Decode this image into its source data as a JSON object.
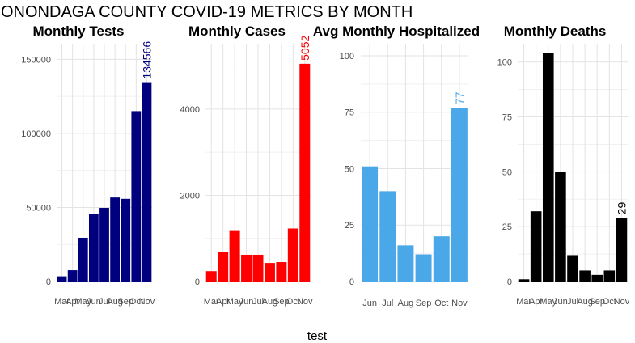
{
  "title": "ONONDAGA COUNTY COVID-19 METRICS BY MONTH",
  "xlabel": "test",
  "chart_data": [
    {
      "type": "bar",
      "title": "Monthly Tests",
      "categories": [
        "Mar",
        "Apr",
        "May",
        "Jun",
        "Jul",
        "Aug",
        "Sep",
        "Oct",
        "Nov"
      ],
      "values": [
        3500,
        7600,
        29500,
        45800,
        49700,
        56700,
        55800,
        115000,
        134566
      ],
      "color": "#00007f",
      "label_color": "#00007f",
      "yticks": [
        0,
        50000,
        100000,
        150000
      ],
      "ylim": [
        0,
        160000
      ],
      "annotation": {
        "category": "Nov",
        "text": "134566"
      }
    },
    {
      "type": "bar",
      "title": "Monthly Cases",
      "categories": [
        "Mar",
        "Apr",
        "May",
        "Jun",
        "Jul",
        "Aug",
        "Sep",
        "Oct",
        "Nov"
      ],
      "values": [
        240,
        680,
        1190,
        620,
        620,
        430,
        450,
        1230,
        5052
      ],
      "color": "#ff0000",
      "label_color": "#ff0000",
      "yticks": [
        0,
        2000,
        4000
      ],
      "ylim": [
        0,
        5500
      ],
      "annotation": {
        "category": "Nov",
        "text": "5052"
      }
    },
    {
      "type": "bar",
      "title": "Avg Monthly Hospitalized",
      "categories": [
        "Jun",
        "Jul",
        "Aug",
        "Sep",
        "Oct",
        "Nov"
      ],
      "values": [
        51,
        40,
        16,
        12,
        20,
        77
      ],
      "color": "#4aa8e8",
      "label_color": "#4aa8e8",
      "yticks": [
        0,
        25,
        50,
        75,
        100
      ],
      "ylim": [
        0,
        105
      ],
      "annotation": {
        "category": "Nov",
        "text": "77"
      }
    },
    {
      "type": "bar",
      "title": "Monthly Deaths",
      "categories": [
        "Mar",
        "Apr",
        "May",
        "Jun",
        "Jul",
        "Aug",
        "Sep",
        "Oct",
        "Nov"
      ],
      "values": [
        1,
        32,
        104,
        50,
        12,
        5,
        3,
        5,
        29
      ],
      "color": "#000000",
      "label_color": "#000000",
      "yticks": [
        0,
        25,
        50,
        75,
        100
      ],
      "ylim": [
        0,
        108
      ],
      "annotation": {
        "category": "Nov",
        "text": "29"
      }
    }
  ]
}
